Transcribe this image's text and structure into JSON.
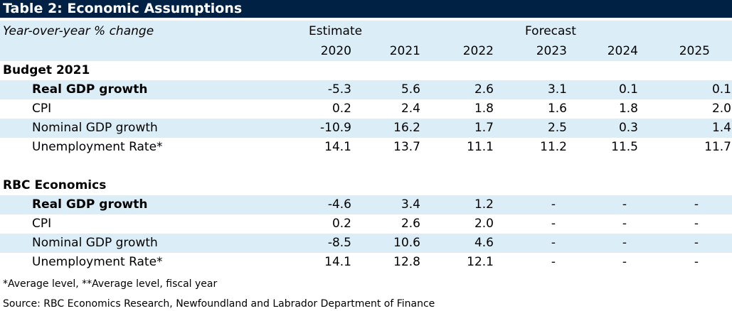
{
  "title": "Table 2: Economic Assumptions",
  "header": {
    "row_label": "Year-over-year % change",
    "estimate_label": "Estimate",
    "forecast_label": "Forecast",
    "years": [
      "2020",
      "2021",
      "2022",
      "2023",
      "2024",
      "2025"
    ]
  },
  "sections": [
    {
      "name": "Budget 2021",
      "rows": [
        {
          "label": "Real GDP growth",
          "values": [
            "-5.3",
            "5.6",
            "2.6",
            "3.1",
            "0.1",
            "0.1"
          ]
        },
        {
          "label": "CPI",
          "values": [
            "0.2",
            "2.4",
            "1.8",
            "1.6",
            "1.8",
            "2.0"
          ]
        },
        {
          "label": "Nominal GDP growth",
          "values": [
            "-10.9",
            "16.2",
            "1.7",
            "2.5",
            "0.3",
            "1.4"
          ]
        },
        {
          "label": "Unemployment Rate*",
          "values": [
            "14.1",
            "13.7",
            "11.1",
            "11.2",
            "11.5",
            "11.7"
          ]
        }
      ]
    },
    {
      "name": "RBC Economics",
      "rows": [
        {
          "label": "Real GDP growth",
          "values": [
            "-4.6",
            "3.4",
            "1.2",
            "-",
            "-",
            "-"
          ]
        },
        {
          "label": "CPI",
          "values": [
            "0.2",
            "2.6",
            "2.0",
            "-",
            "-",
            "-"
          ]
        },
        {
          "label": "Nominal GDP growth",
          "values": [
            "-8.5",
            "10.6",
            "4.6",
            "-",
            "-",
            "-"
          ]
        },
        {
          "label": "Unemployment Rate*",
          "values": [
            "14.1",
            "12.8",
            "12.1",
            "-",
            "-",
            "-"
          ]
        }
      ]
    }
  ],
  "footnotes": {
    "note": "*Average level, **Average level, fiscal year",
    "source": "Source: RBC Economics Research, Newfoundland and Labrador Department of Finance"
  },
  "colors": {
    "title_bg": "#002144",
    "header_bg": "#dbeef8",
    "stripe_bg": "#dbeef8"
  }
}
